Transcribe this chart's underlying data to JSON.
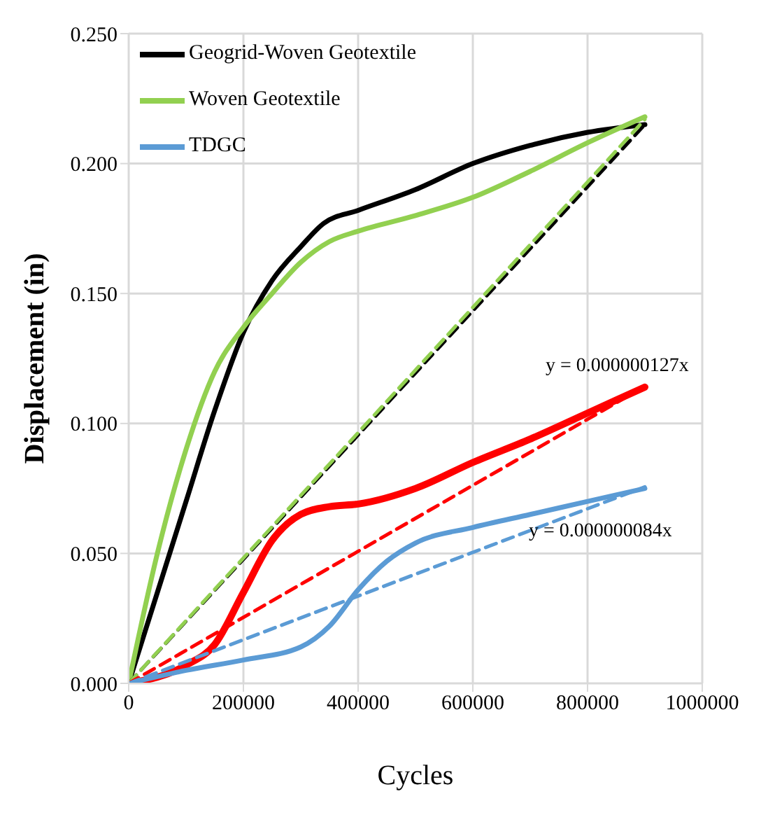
{
  "chart_data": {
    "type": "line",
    "xlabel": "Cycles",
    "ylabel": "Displacement (in)",
    "xlim": [
      0,
      1000000
    ],
    "xticks": [
      0,
      200000,
      400000,
      600000,
      800000,
      1000000
    ],
    "ylim": [
      0,
      0.25
    ],
    "yticks": [
      {
        "value": 0,
        "label": "0.000"
      },
      {
        "value": 0.05,
        "label": "0.050"
      },
      {
        "value": 0.1,
        "label": "0.100"
      },
      {
        "value": 0.15,
        "label": "0.150"
      },
      {
        "value": 0.2,
        "label": "0.200"
      },
      {
        "value": 0.25,
        "label": "0.250"
      }
    ],
    "grid": true,
    "legend": "top left",
    "marker": "none",
    "line_style": "solid",
    "series": [
      {
        "name": "Geogrid-Woven Geotextile",
        "color": "#000000",
        "x": [
          0,
          50000,
          100000,
          150000,
          200000,
          250000,
          300000,
          340000,
          400000,
          500000,
          600000,
          700000,
          800000,
          900000
        ],
        "values": [
          0,
          0.035,
          0.07,
          0.105,
          0.135,
          0.155,
          0.168,
          0.177,
          0.182,
          0.19,
          0.2,
          0.207,
          0.212,
          0.215
        ]
      },
      {
        "name": "Woven Geotextile",
        "color": "#92d050",
        "x": [
          0,
          50000,
          100000,
          150000,
          200000,
          250000,
          300000,
          350000,
          400000,
          500000,
          600000,
          700000,
          800000,
          900000
        ],
        "values": [
          0,
          0.05,
          0.09,
          0.12,
          0.137,
          0.15,
          0.162,
          0.17,
          0.174,
          0.18,
          0.187,
          0.197,
          0.208,
          0.218
        ]
      },
      {
        "color": "#ff0000",
        "x": [
          0,
          100000,
          150000,
          200000,
          250000,
          300000,
          350000,
          400000,
          500000,
          600000,
          700000,
          800000,
          900000
        ],
        "values": [
          0,
          0.007,
          0.015,
          0.035,
          0.055,
          0.065,
          0.068,
          0.069,
          0.075,
          0.085,
          0.094,
          0.104,
          0.114
        ]
      },
      {
        "name": "TDGC",
        "color": "#5b9bd5",
        "x": [
          0,
          100000,
          200000,
          300000,
          350000,
          400000,
          450000,
          500000,
          600000,
          700000,
          800000,
          900000
        ],
        "values": [
          0,
          0.005,
          0.009,
          0.014,
          0.022,
          0.036,
          0.047,
          0.054,
          0.06,
          0.065,
          0.07,
          0.075
        ]
      },
      {
        "type": "line",
        "line_style": "dashed",
        "color": "#000000",
        "x": [
          0,
          900000
        ],
        "values": [
          0,
          0.215
        ]
      },
      {
        "type": "line",
        "line_style": "dashed",
        "color": "#92d050",
        "x": [
          0,
          900000
        ],
        "values": [
          0,
          0.217
        ]
      },
      {
        "type": "line",
        "line_style": "dashed",
        "color": "#ff0000",
        "x": [
          0,
          900000
        ],
        "values": [
          0,
          0.1143
        ]
      },
      {
        "type": "line",
        "line_style": "dashed",
        "color": "#5b9bd5",
        "x": [
          0,
          900000
        ],
        "values": [
          0,
          0.0756
        ]
      }
    ],
    "annotations": [
      "y = 0.000000127x",
      "y = 0.000000084x"
    ]
  }
}
